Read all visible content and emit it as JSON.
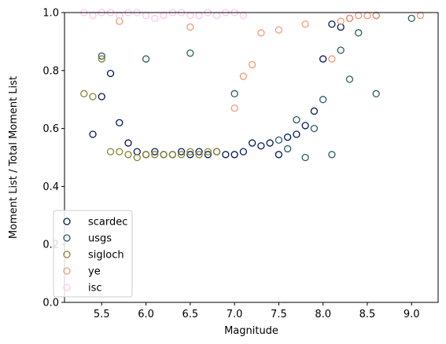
{
  "chart_data": {
    "type": "scatter",
    "title": "",
    "xlabel": "Magnitude",
    "ylabel": "Moment List / Total Moment List",
    "xlim": [
      5.08,
      9.3
    ],
    "ylim": [
      0.0,
      1.0
    ],
    "xticks": [
      "5.5",
      "6.0",
      "6.5",
      "7.0",
      "7.5",
      "8.0",
      "8.5",
      "9.0"
    ],
    "yticks": [
      "0.0",
      "0.2",
      "0.4",
      "0.6",
      "0.8",
      "1.0"
    ],
    "grid": false,
    "legend_position": "lower-left",
    "marker": "hollow-circle",
    "series": [
      {
        "name": "scardec",
        "color": "#05195a",
        "x": [
          5.4,
          5.5,
          5.6,
          5.7,
          5.8,
          5.9,
          6.0,
          6.1,
          6.2,
          6.3,
          6.4,
          6.5,
          6.6,
          6.7,
          6.8,
          6.9,
          7.0,
          7.1,
          7.2,
          7.3,
          7.4,
          7.5,
          7.6,
          7.7,
          7.8,
          7.9,
          8.0,
          8.1,
          8.2,
          8.3,
          8.6
        ],
        "y": [
          0.58,
          0.71,
          0.79,
          0.62,
          0.55,
          0.52,
          0.51,
          0.52,
          0.51,
          0.51,
          0.52,
          0.51,
          0.52,
          0.51,
          0.52,
          0.51,
          0.51,
          0.52,
          0.55,
          0.54,
          0.55,
          0.51,
          0.57,
          0.58,
          0.61,
          0.66,
          0.84,
          0.96,
          0.95,
          0.98,
          0.99
        ]
      },
      {
        "name": "usgs",
        "color": "#2c5d62",
        "x": [
          5.5,
          6.0,
          6.5,
          7.0,
          7.5,
          7.6,
          7.7,
          7.8,
          7.9,
          8.0,
          8.1,
          8.2,
          8.3,
          8.4,
          8.6,
          9.0
        ],
        "y": [
          0.85,
          0.84,
          0.86,
          0.72,
          0.56,
          0.53,
          0.63,
          0.5,
          0.6,
          0.7,
          0.51,
          0.87,
          0.77,
          0.93,
          0.72,
          0.98
        ]
      },
      {
        "name": "sigloch",
        "color": "#858434",
        "x": [
          5.3,
          5.4,
          5.5,
          5.6,
          5.7,
          5.8,
          5.9,
          6.0,
          6.1,
          6.2,
          6.3,
          6.4,
          6.5,
          6.6,
          6.7,
          6.8
        ],
        "y": [
          0.72,
          0.71,
          0.84,
          0.52,
          0.52,
          0.51,
          0.5,
          0.51,
          0.51,
          0.51,
          0.51,
          0.51,
          0.52,
          0.51,
          0.52,
          0.52
        ]
      },
      {
        "name": "ye",
        "color": "#f29b79",
        "x": [
          5.7,
          6.5,
          7.0,
          7.1,
          7.2,
          7.3,
          7.5,
          7.8,
          8.1,
          8.2,
          8.3,
          8.4,
          8.5,
          8.6,
          9.1
        ],
        "y": [
          0.97,
          0.95,
          0.67,
          0.78,
          0.82,
          0.93,
          0.94,
          0.96,
          0.84,
          0.97,
          0.98,
          0.99,
          0.99,
          0.99,
          0.99
        ]
      },
      {
        "name": "isc",
        "color": "#fcc7f2",
        "x": [
          5.3,
          5.4,
          5.5,
          5.6,
          5.7,
          5.8,
          5.9,
          6.0,
          6.1,
          6.2,
          6.3,
          6.4,
          6.5,
          6.6,
          6.7,
          6.8,
          6.9,
          7.0,
          7.1
        ],
        "y": [
          1.0,
          0.99,
          1.0,
          1.0,
          0.99,
          1.0,
          1.0,
          0.99,
          0.98,
          0.99,
          1.0,
          1.0,
          0.99,
          0.99,
          1.0,
          0.99,
          1.0,
          1.0,
          0.99
        ]
      }
    ]
  }
}
